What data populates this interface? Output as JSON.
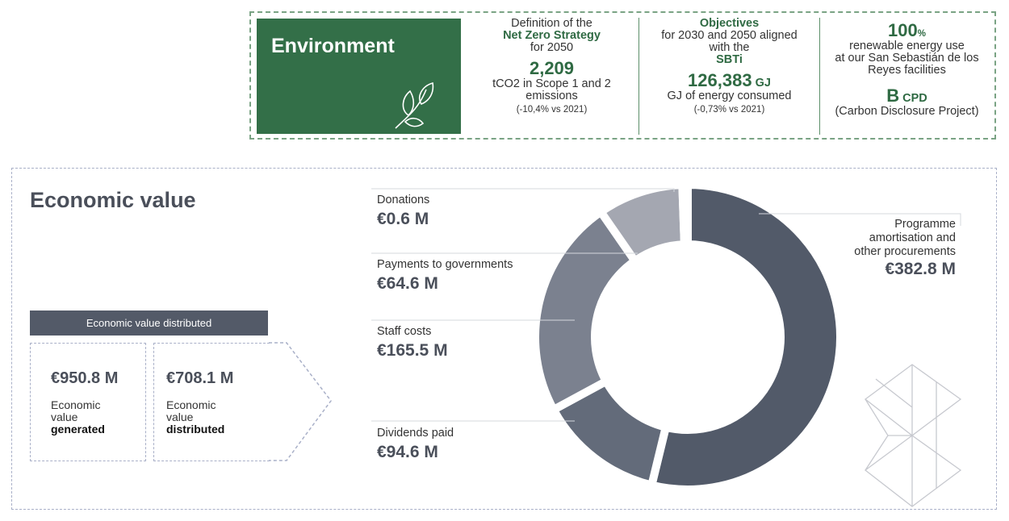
{
  "environment": {
    "title": "Environment",
    "icon": "leaves-icon",
    "col1": {
      "line1": "Definition of the",
      "highlight": "Net Zero Strategy",
      "line2": "for 2050",
      "value": "2,209",
      "desc1": "tCO2 in Scope 1 and 2",
      "desc2": "emissions",
      "change": "(-10,4% vs 2021)"
    },
    "col2": {
      "highlight": "Objectives",
      "line1": "for 2030 and 2050 aligned",
      "line2": "with the",
      "highlight2": "SBTi",
      "value": "126,383",
      "unit": "GJ",
      "desc": "GJ of energy consumed",
      "change": "(-0,73% vs 2021)"
    },
    "col3": {
      "value": "100",
      "unit": "%",
      "line1": "renewable energy use",
      "line2": "at our San Sebastián de los",
      "line3": "Reyes facilities",
      "rating": "B",
      "rating_unit": "CPD",
      "rating_desc": "(Carbon Disclosure Project)"
    }
  },
  "economic": {
    "title": "Economic value",
    "distributed_header": "Economic value distributed",
    "generated": {
      "value": "€950.8 M",
      "l1": "Economic",
      "l2": "value",
      "l3": "generated"
    },
    "distributed": {
      "value": "€708.1 M",
      "l1": "Economic",
      "l2": "value",
      "l3": "distributed"
    }
  },
  "chart_data": {
    "type": "pie",
    "subtype": "donut",
    "title": "Economic value distributed",
    "unit": "€M",
    "slices": [
      {
        "name": "Programme amortisation and other procurements",
        "value": 382.8,
        "label": "€382.8 M",
        "color": "#525a69"
      },
      {
        "name": "Dividends paid",
        "value": 94.6,
        "label": "€94.6 M",
        "color": "#636b7a"
      },
      {
        "name": "Staff costs",
        "value": 165.5,
        "label": "€165.5 M",
        "color": "#7b818f"
      },
      {
        "name": "Payments to governments",
        "value": 64.6,
        "label": "€64.6 M",
        "color": "#a4a7b1"
      },
      {
        "name": "Donations",
        "value": 0.6,
        "label": "€0.6 M",
        "color": "#dfe0e5"
      }
    ]
  }
}
